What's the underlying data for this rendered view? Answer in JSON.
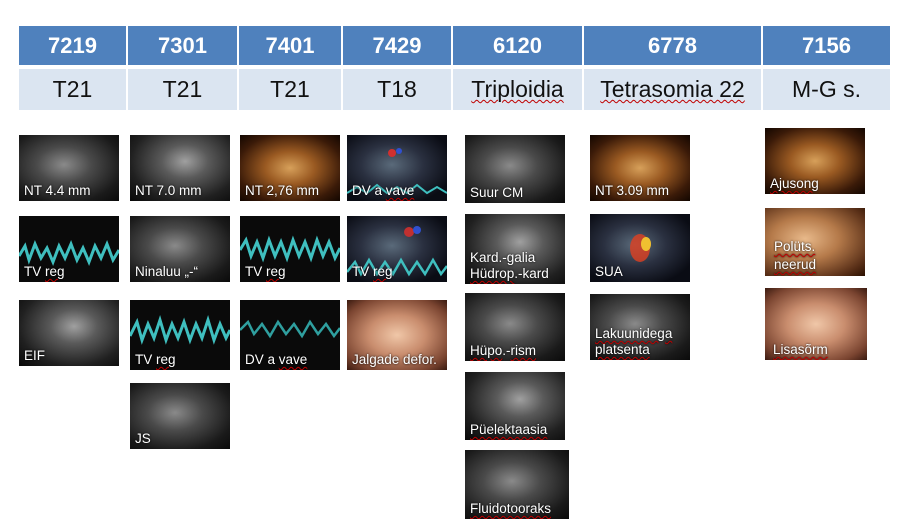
{
  "columns": [
    {
      "id": "7219",
      "label": "T21"
    },
    {
      "id": "7301",
      "label": "T21"
    },
    {
      "id": "7401",
      "label": "T21"
    },
    {
      "id": "7429",
      "label": "T18"
    },
    {
      "id": "6120",
      "label": "Triploidia"
    },
    {
      "id": "6778",
      "label": "Tetrasomia 22"
    },
    {
      "id": "7156",
      "label": "M-G s."
    }
  ],
  "images": {
    "c7219": [
      "NT 4.4 mm",
      "TV reg",
      "EIF"
    ],
    "c7301": [
      "NT 7.0 mm",
      "Ninaluu „-“",
      "TV reg",
      "JS"
    ],
    "c7401": [
      "NT 2,76 mm",
      "TV reg",
      "DV a vave"
    ],
    "c7429": [
      "DV a vave",
      "TV reg",
      "Jalgade defor."
    ],
    "c6120": [
      "Suur CM",
      "Kard.-galia",
      "Hüdrop.-kard",
      "Hüpo.-rism",
      "Püelektaasia",
      "Fluidotooraks"
    ],
    "c6778": [
      "NT 3.09 mm",
      "SUA",
      "Lakuunidega",
      "platsenta"
    ],
    "c7156": [
      "Ajusong",
      "Polüts.",
      "neerud",
      "Lisasõrm"
    ]
  }
}
